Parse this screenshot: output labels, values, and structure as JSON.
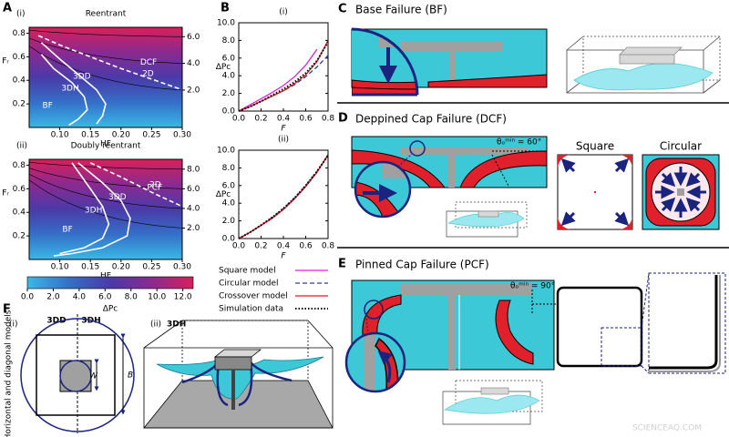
{
  "panel_letters": [
    "A",
    "B",
    "C",
    "D",
    "E",
    "F"
  ],
  "chart_data": [
    {
      "type": "heatmap",
      "panel": "(i)",
      "title": "Reentrant",
      "xlabel": "HF",
      "ylabel": "Fᵣ",
      "xlim": [
        0.05,
        0.3
      ],
      "ylim": [
        0,
        0.85
      ],
      "xticks": [
        {
          "value": 0.1,
          "label": "0.10"
        },
        {
          "value": 0.15,
          "label": "0.15"
        },
        {
          "value": 0.2,
          "label": "0.20"
        },
        {
          "value": 0.25,
          "label": "0.25"
        },
        {
          "value": 0.3,
          "label": "0.30"
        }
      ],
      "yticks": [
        0.2,
        0.4,
        0.6,
        0.8
      ],
      "y2lim": [
        -0.8,
        6.7
      ],
      "y2ticks": [
        {
          "value": 2,
          "label": "2.0"
        },
        {
          "value": 4,
          "label": "4.0"
        },
        {
          "value": 6,
          "label": "6.0"
        }
      ],
      "line_color": "#ffffff",
      "series": [
        {
          "name": "2D",
          "style": "dashed",
          "x": [
            0.065,
            0.1,
            0.15,
            0.2,
            0.25,
            0.3
          ],
          "values": [
            0.78,
            0.7,
            0.6,
            0.5,
            0.41,
            0.32
          ]
        },
        {
          "name": "3DD",
          "style": "solid",
          "x": [
            0.07,
            0.1,
            0.13,
            0.16,
            0.175,
            0.17,
            0.16
          ],
          "values": [
            0.72,
            0.58,
            0.45,
            0.32,
            0.2,
            0.1,
            0.03
          ]
        },
        {
          "name": "3DH",
          "style": "solid",
          "x": [
            0.07,
            0.09,
            0.12,
            0.14,
            0.145,
            0.13,
            0.115
          ],
          "values": [
            0.62,
            0.5,
            0.38,
            0.26,
            0.15,
            0.07,
            0.02
          ]
        }
      ],
      "regions": [
        "BF",
        "DCF"
      ]
    },
    {
      "type": "heatmap",
      "panel": "(ii)",
      "title": "Doubly reentrant",
      "xlabel": "HF",
      "ylabel": "Fᵣ",
      "xlim": [
        0.05,
        0.3
      ],
      "ylim": [
        0,
        0.85
      ],
      "xticks": [
        {
          "value": 0.1,
          "label": "0.10"
        },
        {
          "value": 0.15,
          "label": "0.15"
        },
        {
          "value": 0.2,
          "label": "0.20"
        },
        {
          "value": 0.25,
          "label": "0.25"
        },
        {
          "value": 0.3,
          "label": "0.30"
        }
      ],
      "yticks": [
        0.2,
        0.4,
        0.6,
        0.8
      ],
      "y2lim": [
        -1.2,
        9.0
      ],
      "y2ticks": [
        {
          "value": 2,
          "label": "2.0"
        },
        {
          "value": 4,
          "label": "4.0"
        },
        {
          "value": 6,
          "label": "6.0"
        },
        {
          "value": 8,
          "label": "8.0"
        }
      ],
      "line_color": "#ffffff",
      "series": [
        {
          "name": "2D",
          "style": "dashed",
          "x": [
            0.15,
            0.2,
            0.25,
            0.3
          ],
          "values": [
            0.82,
            0.7,
            0.57,
            0.45
          ]
        },
        {
          "name": "3DD",
          "style": "solid",
          "x": [
            0.13,
            0.17,
            0.2,
            0.215,
            0.21,
            0.17,
            0.12,
            0.09
          ],
          "values": [
            0.82,
            0.65,
            0.5,
            0.35,
            0.2,
            0.1,
            0.05,
            0.03
          ]
        },
        {
          "name": "3DH",
          "style": "solid",
          "x": [
            0.12,
            0.15,
            0.17,
            0.18,
            0.17,
            0.14,
            0.1
          ],
          "values": [
            0.82,
            0.6,
            0.45,
            0.3,
            0.18,
            0.1,
            0.05
          ]
        }
      ],
      "regions": [
        "BF",
        "PCF"
      ]
    },
    {
      "type": "colorbar",
      "label": "ΔPc",
      "xlim": [
        0,
        12.8
      ],
      "xticks": [
        {
          "value": 0,
          "label": "0.0"
        },
        {
          "value": 2,
          "label": "2.0"
        },
        {
          "value": 4,
          "label": "4.0"
        },
        {
          "value": 6,
          "label": "6.0"
        },
        {
          "value": 8,
          "label": "8.0"
        },
        {
          "value": 10,
          "label": "10.0"
        },
        {
          "value": 12,
          "label": "12.0"
        }
      ],
      "colors": [
        "#3ab8e6",
        "#3470c8",
        "#4a3aa8",
        "#8a2a90",
        "#d8205a"
      ]
    },
    {
      "type": "line",
      "panel": "(i)",
      "xlabel": "F",
      "ylabel": "ΔPc",
      "legend": true,
      "x": [
        0,
        0.1,
        0.2,
        0.3,
        0.4,
        0.5,
        0.6,
        0.7,
        0.8
      ],
      "xlim": [
        0,
        0.8
      ],
      "ylim": [
        0,
        10
      ],
      "xticks": [
        {
          "value": 0,
          "label": "0.0"
        },
        0.2,
        0.4,
        0.6,
        0.8
      ],
      "yticks": [
        {
          "value": 0,
          "label": "0.0"
        },
        {
          "value": 2,
          "label": "2.0"
        },
        {
          "value": 4,
          "label": "4.0"
        },
        {
          "value": 6,
          "label": "6.0"
        },
        {
          "value": 8,
          "label": "8.0"
        },
        {
          "value": 10,
          "label": "10.0"
        }
      ],
      "series": [
        {
          "name": "Square model",
          "color": "#e020d0",
          "dash": "solid",
          "values": [
            0,
            0.7,
            1.4,
            2.1,
            2.9,
            3.9,
            5.2,
            7.0,
            null
          ]
        },
        {
          "name": "Circular model",
          "color": "#2a3aa8",
          "dash": "dashed",
          "values": [
            0,
            0.5,
            1.1,
            1.7,
            2.3,
            3.0,
            3.9,
            5.0,
            6.3
          ]
        },
        {
          "name": "Crossover model",
          "color": "#e01a1a",
          "dash": "solid",
          "values": [
            0,
            0.5,
            1.1,
            1.7,
            2.3,
            3.1,
            4.1,
            5.6,
            8.0
          ]
        },
        {
          "name": "Simulation data",
          "color": "#000000",
          "dash": "dotted",
          "values": [
            0,
            0.5,
            1.1,
            1.8,
            2.5,
            3.3,
            4.3,
            5.7,
            7.8
          ]
        }
      ]
    },
    {
      "type": "line",
      "panel": "(ii)",
      "xlabel": "F",
      "ylabel": "ΔPc",
      "legend": false,
      "x": [
        0,
        0.1,
        0.2,
        0.3,
        0.4,
        0.5,
        0.6,
        0.7,
        0.8
      ],
      "xlim": [
        0,
        0.8
      ],
      "ylim": [
        0,
        10
      ],
      "xticks": [
        {
          "value": 0,
          "label": "0.0"
        },
        0.2,
        0.4,
        0.6,
        0.8
      ],
      "yticks": [
        {
          "value": 0,
          "label": "0.0"
        },
        {
          "value": 2,
          "label": "2.0"
        },
        {
          "value": 4,
          "label": "4.0"
        },
        {
          "value": 6,
          "label": "6.0"
        },
        {
          "value": 8,
          "label": "8.0"
        },
        {
          "value": 10,
          "label": "10.0"
        }
      ],
      "series": [
        {
          "color": "#e020d0",
          "dash": "solid",
          "values": [
            0,
            0.7,
            1.5,
            2.3,
            3.3,
            4.5,
            5.9,
            7.5,
            9.5
          ]
        },
        {
          "color": "#2a3aa8",
          "dash": "dashed",
          "values": [
            0,
            0.7,
            1.5,
            2.4,
            3.4,
            4.6,
            6.0,
            7.6,
            9.4
          ]
        },
        {
          "color": "#e01a1a",
          "dash": "solid",
          "values": [
            0,
            0.7,
            1.5,
            2.3,
            3.3,
            4.5,
            5.9,
            7.5,
            9.5
          ]
        },
        {
          "color": "#000000",
          "dash": "dotted",
          "values": [
            0,
            0.7,
            1.5,
            2.4,
            3.4,
            4.6,
            6.0,
            7.6,
            9.4
          ]
        }
      ]
    }
  ],
  "C": {
    "title": "Base Failure (BF)"
  },
  "D": {
    "title": "Deppined Cap Failure (DCF)",
    "angle": "θₒᵐⁱⁿ = 60°",
    "square": "Square",
    "circular": "Circular"
  },
  "E": {
    "title": "Pinned Cap Failure (PCF)",
    "angle": "θₒᵐⁱⁿ = 90°"
  },
  "F": {
    "sub_i": "(i)",
    "dd": "3DD",
    "dh": "3DH",
    "side": "Horizontal and diagonal models",
    "w": "W",
    "b": "B",
    "sub_ii": "(ii)",
    "dh2": "3DH"
  },
  "watermark": "SCIENCEAQ.COM"
}
